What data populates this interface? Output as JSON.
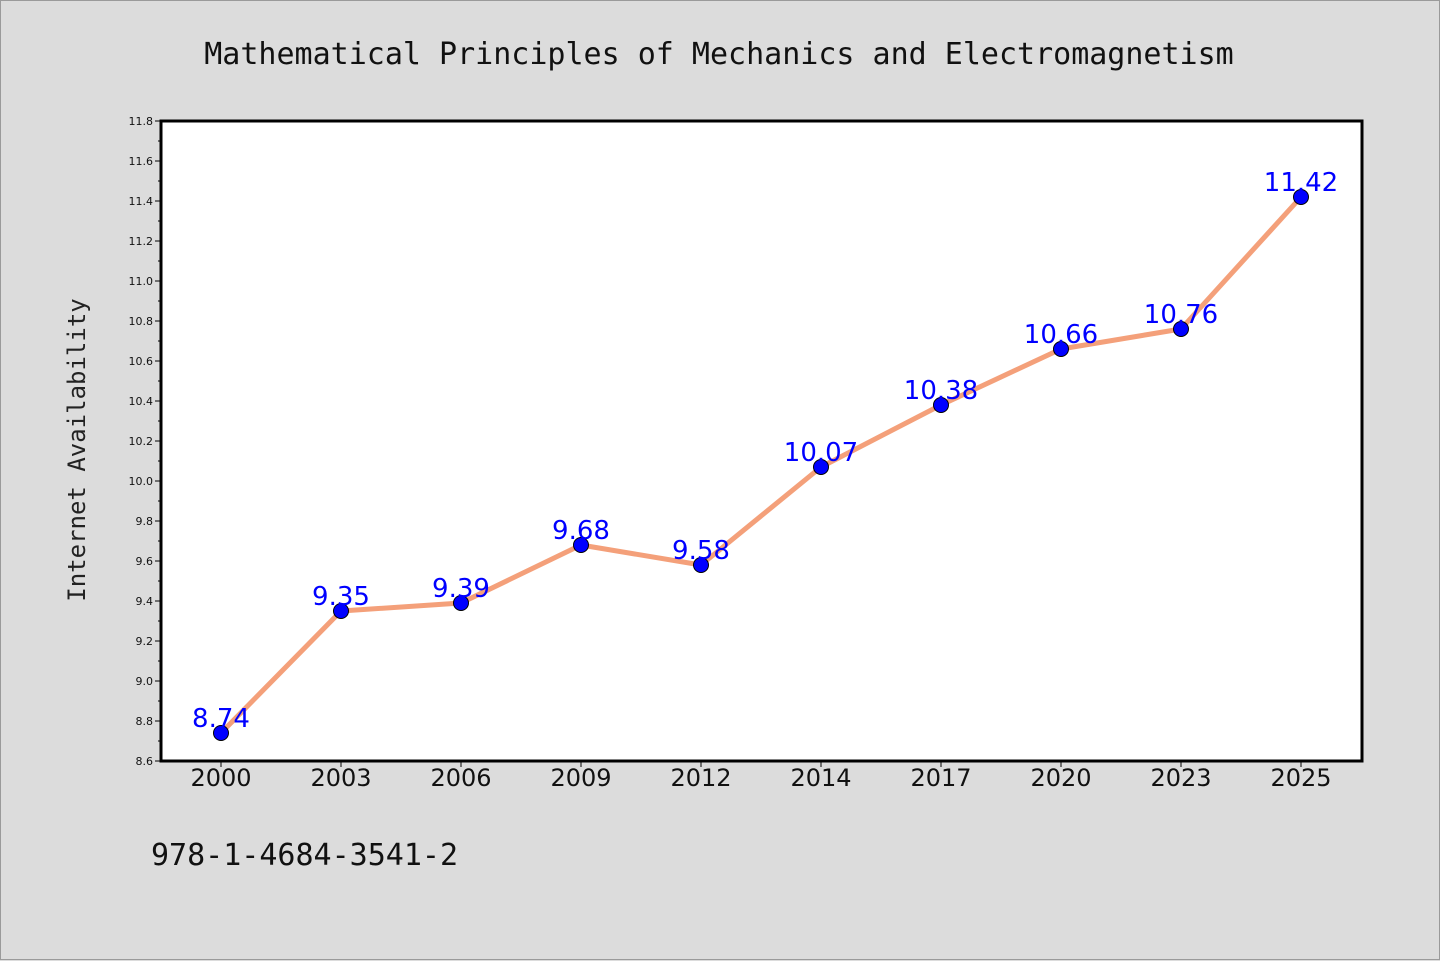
{
  "chart_data": {
    "type": "line",
    "title": "Mathematical Principles of Mechanics and Electromagnetism",
    "xlabel": "",
    "ylabel": "Internet Availability",
    "categories": [
      "2000",
      "2003",
      "2006",
      "2009",
      "2012",
      "2014",
      "2017",
      "2020",
      "2023",
      "2025"
    ],
    "series": [
      {
        "values": [
          8.74,
          9.35,
          9.39,
          9.68,
          9.58,
          10.07,
          10.38,
          10.66,
          10.76,
          11.42
        ],
        "data_labels": [
          "8.74",
          "9.35",
          "9.39",
          "9.68",
          "9.58",
          "10.07",
          "10.38",
          "10.66",
          "10.76",
          "11.42"
        ],
        "line_color": "#f4a07a",
        "marker_color": "#0000ff"
      }
    ],
    "ylim": [
      8.6,
      11.8
    ],
    "yticks": [
      "8.6",
      "8.8",
      "9.0",
      "9.2",
      "9.4",
      "9.6",
      "9.8",
      "10.0",
      "10.2",
      "10.4",
      "10.6",
      "10.8",
      "11.0",
      "11.2",
      "11.4",
      "11.6",
      "11.8"
    ],
    "grid": false,
    "legend": "none"
  },
  "footer": {
    "text": "978-1-4684-3541-2"
  },
  "colors": {
    "background": "#dcdcdc",
    "plot_area": "#ffffff",
    "data_label": "#0000ff"
  }
}
